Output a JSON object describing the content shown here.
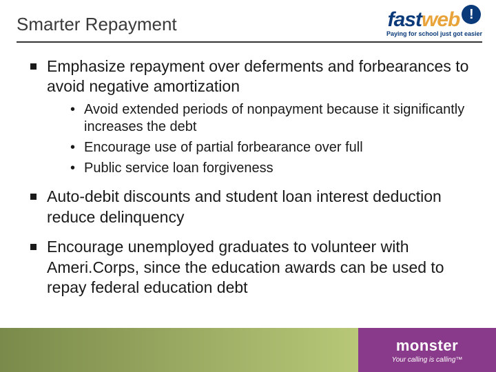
{
  "header": {
    "title": "Smarter Repayment",
    "logo": {
      "part1": "fast",
      "part2": "web",
      "bang": "!",
      "tagline": "Paying for school just got easier"
    }
  },
  "bullets": [
    {
      "text": "Emphasize repayment over deferments and forbearances to avoid negative amortization",
      "sub": [
        "Avoid extended periods of nonpayment because it significantly increases the debt",
        "Encourage use of partial forbearance over full",
        "Public service loan forgiveness"
      ]
    },
    {
      "text": "Auto-debit discounts and student loan interest deduction reduce delinquency",
      "sub": []
    },
    {
      "text": "Encourage unemployed graduates to volunteer with Ameri.Corps, since the education awards can be used to repay federal education debt",
      "sub": []
    }
  ],
  "footer": {
    "brand": "monster",
    "tagline": "Your calling is calling™"
  },
  "colors": {
    "title": "#3a3a3a",
    "text": "#1a1a1a",
    "fw_blue": "#0a3a7a",
    "fw_orange": "#e8a33a",
    "footer_grad_start": "#7a8a4a",
    "footer_grad_end": "#b8c878",
    "monster_bg": "#8a3a8a",
    "hr": "#333333",
    "background": "#ffffff"
  },
  "typography": {
    "title_size": 26,
    "bullet_size": 23,
    "sub_bullet_size": 20,
    "font_family": "Arial"
  }
}
